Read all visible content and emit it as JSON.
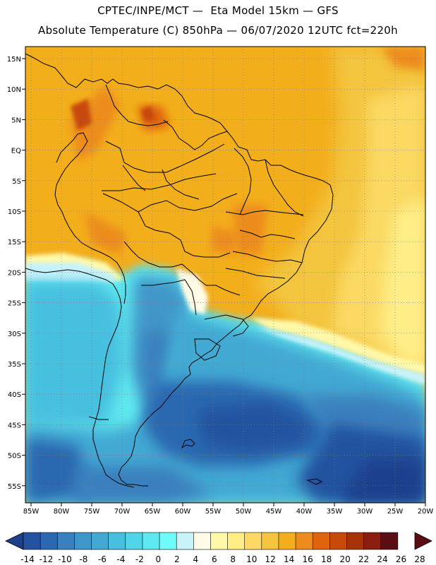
{
  "title": {
    "line1": "CPTEC/INPE/MCT —  Eta Model 15km — GFS",
    "line2": "Absolute Temperature (C) 850hPa — 06/07/2020 12UTC fct=220h"
  },
  "axes": {
    "lat_labels": [
      "15N",
      "10N",
      "5N",
      "EQ",
      "5S",
      "10S",
      "15S",
      "20S",
      "25S",
      "30S",
      "35S",
      "40S",
      "45S",
      "50S",
      "55S"
    ],
    "lon_labels": [
      "85W",
      "80W",
      "75W",
      "70W",
      "65W",
      "60W",
      "55W",
      "50W",
      "45W",
      "40W",
      "35W",
      "30W",
      "25W",
      "20W"
    ]
  },
  "colorbar": {
    "labels": [
      "-14",
      "-12",
      "-10",
      "-8",
      "-6",
      "-4",
      "-2",
      "0",
      "2",
      "4",
      "6",
      "8",
      "10",
      "12",
      "14",
      "16",
      "18",
      "20",
      "22",
      "24",
      "26",
      "28"
    ],
    "colors": [
      "#1e3f8c",
      "#2452a0",
      "#2c68b0",
      "#3a80be",
      "#3f97c9",
      "#43a9d3",
      "#47bfdf",
      "#4fd5e8",
      "#5ee8ef",
      "#70fbfb",
      "#c8f3fb",
      "#fffbe6",
      "#fff8a8",
      "#ffee88",
      "#fbd964",
      "#f3c43c",
      "#f3ae1c",
      "#ec8c1c",
      "#e0640e",
      "#c84a0a",
      "#a83208",
      "#8a1e10",
      "#5a0e14"
    ]
  }
}
